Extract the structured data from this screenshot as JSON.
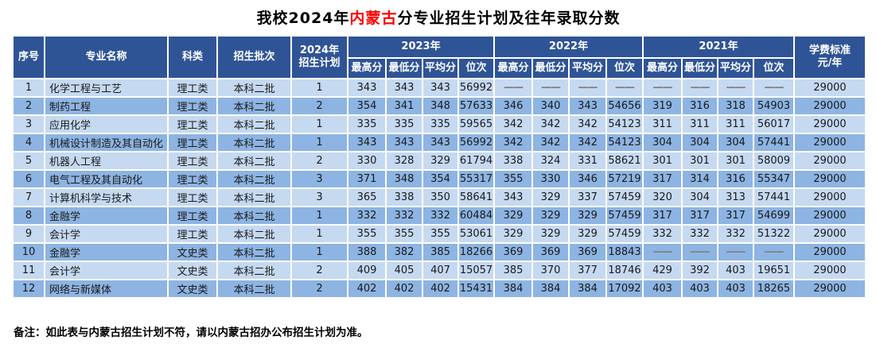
{
  "title": {
    "prefix": "我校2024年",
    "highlight": "内蒙古",
    "suffix": "分专业招生计划及往年录取分数"
  },
  "colors": {
    "header_bg": "#2F5496",
    "row_odd": "#C5D9F1",
    "row_even": "#8DB4E2",
    "title_highlight": "#FF0000",
    "dash_text": "#7F7F7F"
  },
  "table": {
    "headers": {
      "no": "序号",
      "major": "专业名称",
      "category": "科类",
      "batch": "招生批次",
      "plan2024": "2024年\n招生计划",
      "tuition": "学费标准\n元/年"
    },
    "year_groups": [
      "2023年",
      "2022年",
      "2021年"
    ],
    "sub_headers": [
      "最高分",
      "最低分",
      "平均分",
      "位次"
    ],
    "rows": [
      {
        "no": "1",
        "major": "化学工程与工艺",
        "category": "理工类",
        "batch": "本科二批",
        "plan": "1",
        "y2023": [
          "343",
          "343",
          "343",
          "56992"
        ],
        "y2022": [
          "——",
          "——",
          "——",
          "——"
        ],
        "y2021": [
          "——",
          "——",
          "——",
          "——"
        ],
        "tuition": "29000"
      },
      {
        "no": "2",
        "major": "制药工程",
        "category": "理工类",
        "batch": "本科二批",
        "plan": "2",
        "y2023": [
          "354",
          "341",
          "348",
          "57633"
        ],
        "y2022": [
          "346",
          "340",
          "343",
          "54656"
        ],
        "y2021": [
          "319",
          "316",
          "318",
          "54903"
        ],
        "tuition": "29000"
      },
      {
        "no": "3",
        "major": "应用化学",
        "category": "理工类",
        "batch": "本科二批",
        "plan": "1",
        "y2023": [
          "335",
          "335",
          "335",
          "59565"
        ],
        "y2022": [
          "342",
          "342",
          "342",
          "54123"
        ],
        "y2021": [
          "311",
          "311",
          "311",
          "56017"
        ],
        "tuition": "29000"
      },
      {
        "no": "4",
        "major": "机械设计制造及其自动化",
        "category": "理工类",
        "batch": "本科二批",
        "plan": "1",
        "y2023": [
          "343",
          "343",
          "343",
          "56992"
        ],
        "y2022": [
          "342",
          "342",
          "342",
          "54123"
        ],
        "y2021": [
          "304",
          "304",
          "304",
          "57441"
        ],
        "tuition": "29000"
      },
      {
        "no": "5",
        "major": "机器人工程",
        "category": "理工类",
        "batch": "本科二批",
        "plan": "2",
        "y2023": [
          "330",
          "328",
          "329",
          "61794"
        ],
        "y2022": [
          "338",
          "324",
          "331",
          "58621"
        ],
        "y2021": [
          "301",
          "301",
          "301",
          "58009"
        ],
        "tuition": "29000"
      },
      {
        "no": "6",
        "major": "电气工程及其自动化",
        "category": "理工类",
        "batch": "本科二批",
        "plan": "3",
        "y2023": [
          "371",
          "348",
          "354",
          "55317"
        ],
        "y2022": [
          "355",
          "330",
          "346",
          "57219"
        ],
        "y2021": [
          "317",
          "314",
          "316",
          "55347"
        ],
        "tuition": "29000"
      },
      {
        "no": "7",
        "major": "计算机科学与技术",
        "category": "理工类",
        "batch": "本科二批",
        "plan": "3",
        "y2023": [
          "365",
          "338",
          "350",
          "58641"
        ],
        "y2022": [
          "343",
          "329",
          "337",
          "57459"
        ],
        "y2021": [
          "320",
          "304",
          "313",
          "57441"
        ],
        "tuition": "29000"
      },
      {
        "no": "8",
        "major": "金融学",
        "category": "理工类",
        "batch": "本科二批",
        "plan": "1",
        "y2023": [
          "332",
          "332",
          "332",
          "60484"
        ],
        "y2022": [
          "329",
          "329",
          "329",
          "57459"
        ],
        "y2021": [
          "317",
          "317",
          "317",
          "54699"
        ],
        "tuition": "29000"
      },
      {
        "no": "9",
        "major": "会计学",
        "category": "理工类",
        "batch": "本科二批",
        "plan": "1",
        "y2023": [
          "355",
          "355",
          "355",
          "53061"
        ],
        "y2022": [
          "329",
          "329",
          "329",
          "57459"
        ],
        "y2021": [
          "332",
          "332",
          "332",
          "51322"
        ],
        "tuition": "29000"
      },
      {
        "no": "10",
        "major": "金融学",
        "category": "文史类",
        "batch": "本科二批",
        "plan": "1",
        "y2023": [
          "388",
          "382",
          "385",
          "18266"
        ],
        "y2022": [
          "369",
          "369",
          "369",
          "18843"
        ],
        "y2021": [
          "——",
          "——",
          "——",
          "——"
        ],
        "tuition": "29000"
      },
      {
        "no": "11",
        "major": "会计学",
        "category": "文史类",
        "batch": "本科二批",
        "plan": "2",
        "y2023": [
          "409",
          "405",
          "407",
          "15057"
        ],
        "y2022": [
          "385",
          "370",
          "377",
          "18746"
        ],
        "y2021": [
          "429",
          "392",
          "403",
          "19651"
        ],
        "tuition": "29000"
      },
      {
        "no": "12",
        "major": "网络与新媒体",
        "category": "文史类",
        "batch": "本科二批",
        "plan": "2",
        "y2023": [
          "402",
          "402",
          "402",
          "15431"
        ],
        "y2022": [
          "384",
          "384",
          "384",
          "17092"
        ],
        "y2021": [
          "403",
          "403",
          "403",
          "18265"
        ],
        "tuition": "29000"
      }
    ]
  },
  "note": "备注：如此表与内蒙古招生计划不符，请以内蒙古招办公布招生计划为准。"
}
